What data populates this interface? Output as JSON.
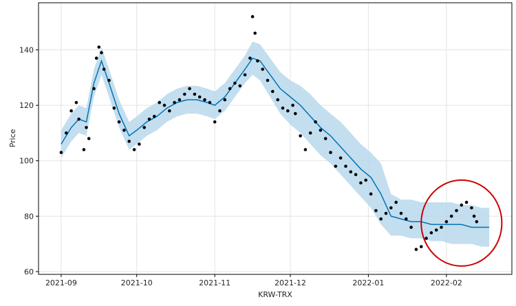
{
  "chart_data": {
    "type": "line",
    "title": "",
    "xlabel": "KRW-TRX",
    "ylabel": "Price",
    "x_ticks": [
      "2021-09",
      "2021-10",
      "2021-11",
      "2021-12",
      "2022-01",
      "2022-02"
    ],
    "y_ticks": [
      60,
      80,
      100,
      120,
      140
    ],
    "xlim": [
      "2021-08-23",
      "2022-02-27"
    ],
    "ylim": [
      59,
      157
    ],
    "grid": true,
    "legend": "none",
    "series": [
      {
        "kind": "forecast",
        "color": "#0072b2",
        "band_color": "#b9d8ec",
        "dates": [
          "2021-09-01",
          "2021-09-05",
          "2021-09-08",
          "2021-09-11",
          "2021-09-14",
          "2021-09-17",
          "2021-09-20",
          "2021-09-24",
          "2021-09-28",
          "2021-10-01",
          "2021-10-05",
          "2021-10-09",
          "2021-10-13",
          "2021-10-17",
          "2021-10-21",
          "2021-10-25",
          "2021-10-29",
          "2021-11-01",
          "2021-11-05",
          "2021-11-09",
          "2021-11-13",
          "2021-11-16",
          "2021-11-19",
          "2021-11-23",
          "2021-11-27",
          "2021-12-01",
          "2021-12-05",
          "2021-12-09",
          "2021-12-13",
          "2021-12-17",
          "2021-12-21",
          "2021-12-25",
          "2021-12-29",
          "2022-01-02",
          "2022-01-06",
          "2022-01-10",
          "2022-01-14",
          "2022-01-18",
          "2022-01-22",
          "2022-01-26",
          "2022-01-30",
          "2022-02-03",
          "2022-02-07",
          "2022-02-11",
          "2022-02-15",
          "2022-02-18"
        ],
        "yhat": [
          106,
          112,
          115,
          114,
          128,
          136,
          128,
          117,
          109,
          111,
          114,
          116,
          119,
          121,
          122,
          122,
          121,
          120,
          123,
          128,
          133,
          137,
          136,
          131,
          126,
          123,
          120,
          116,
          112,
          109,
          105,
          101,
          97,
          94,
          88,
          80,
          79,
          78,
          78,
          77,
          77,
          77,
          77,
          76,
          76,
          76
        ],
        "lower": [
          101,
          107,
          110,
          109,
          123,
          131,
          123,
          112,
          104,
          106,
          109,
          111,
          114,
          116,
          117,
          117,
          116,
          115,
          118,
          123,
          128,
          131,
          129,
          123,
          117,
          113,
          110,
          106,
          102,
          99,
          95,
          91,
          87,
          83,
          77,
          73,
          73,
          72,
          72,
          71,
          71,
          70,
          70,
          70,
          69,
          69
        ],
        "upper": [
          111,
          117,
          120,
          119,
          133,
          141,
          133,
          122,
          114,
          116,
          119,
          121,
          124,
          126,
          127,
          127,
          126,
          125,
          128,
          133,
          138,
          143,
          142,
          137,
          132,
          129,
          127,
          124,
          120,
          117,
          114,
          110,
          106,
          103,
          99,
          88,
          86,
          86,
          85,
          85,
          85,
          85,
          84,
          84,
          83,
          83
        ]
      },
      {
        "kind": "observed",
        "color": "#000000",
        "dates": [
          "2021-09-01",
          "2021-09-03",
          "2021-09-05",
          "2021-09-07",
          "2021-09-08",
          "2021-09-10",
          "2021-09-11",
          "2021-09-12",
          "2021-09-14",
          "2021-09-15",
          "2021-09-16",
          "2021-09-17",
          "2021-09-18",
          "2021-09-20",
          "2021-09-22",
          "2021-09-24",
          "2021-09-26",
          "2021-09-28",
          "2021-09-30",
          "2021-10-02",
          "2021-10-04",
          "2021-10-06",
          "2021-10-08",
          "2021-10-10",
          "2021-10-12",
          "2021-10-14",
          "2021-10-16",
          "2021-10-18",
          "2021-10-20",
          "2021-10-22",
          "2021-10-24",
          "2021-10-26",
          "2021-10-28",
          "2021-10-30",
          "2021-11-01",
          "2021-11-03",
          "2021-11-05",
          "2021-11-07",
          "2021-11-09",
          "2021-11-11",
          "2021-11-13",
          "2021-11-15",
          "2021-11-16",
          "2021-11-17",
          "2021-11-18",
          "2021-11-20",
          "2021-11-22",
          "2021-11-24",
          "2021-11-26",
          "2021-11-28",
          "2021-11-30",
          "2021-12-02",
          "2021-12-03",
          "2021-12-05",
          "2021-12-07",
          "2021-12-09",
          "2021-12-11",
          "2021-12-13",
          "2021-12-15",
          "2021-12-17",
          "2021-12-19",
          "2021-12-21",
          "2021-12-23",
          "2021-12-25",
          "2021-12-27",
          "2021-12-29",
          "2021-12-31",
          "2022-01-02",
          "2022-01-04",
          "2022-01-06",
          "2022-01-08",
          "2022-01-10",
          "2022-01-12",
          "2022-01-14",
          "2022-01-16",
          "2022-01-18",
          "2022-01-20",
          "2022-01-22",
          "2022-01-24",
          "2022-01-26",
          "2022-01-28",
          "2022-01-30",
          "2022-02-01",
          "2022-02-03",
          "2022-02-05",
          "2022-02-07",
          "2022-02-09",
          "2022-02-11",
          "2022-02-12",
          "2022-02-13"
        ],
        "values": [
          103,
          110,
          118,
          121,
          115,
          104,
          112,
          108,
          126,
          137,
          141,
          139,
          133,
          129,
          119,
          114,
          111,
          107,
          104,
          106,
          112,
          115,
          116,
          121,
          120,
          118,
          121,
          122,
          124,
          126,
          124,
          123,
          122,
          121,
          114,
          118,
          122,
          126,
          128,
          127,
          131,
          137,
          152,
          146,
          136,
          133,
          129,
          125,
          122,
          119,
          118,
          120,
          117,
          109,
          104,
          110,
          114,
          111,
          108,
          103,
          98,
          101,
          98,
          96,
          95,
          92,
          93,
          88,
          82,
          79,
          81,
          83,
          85,
          81,
          79,
          76,
          68,
          69,
          72,
          74,
          75,
          76,
          78,
          80,
          82,
          84,
          85,
          83,
          80,
          78
        ]
      }
    ],
    "annotations": [
      {
        "type": "ellipse",
        "color": "#cc0000",
        "center": [
          "2022-02-07",
          77.5
        ],
        "x_radius_days": 16,
        "y_radius": 15.5
      }
    ]
  }
}
